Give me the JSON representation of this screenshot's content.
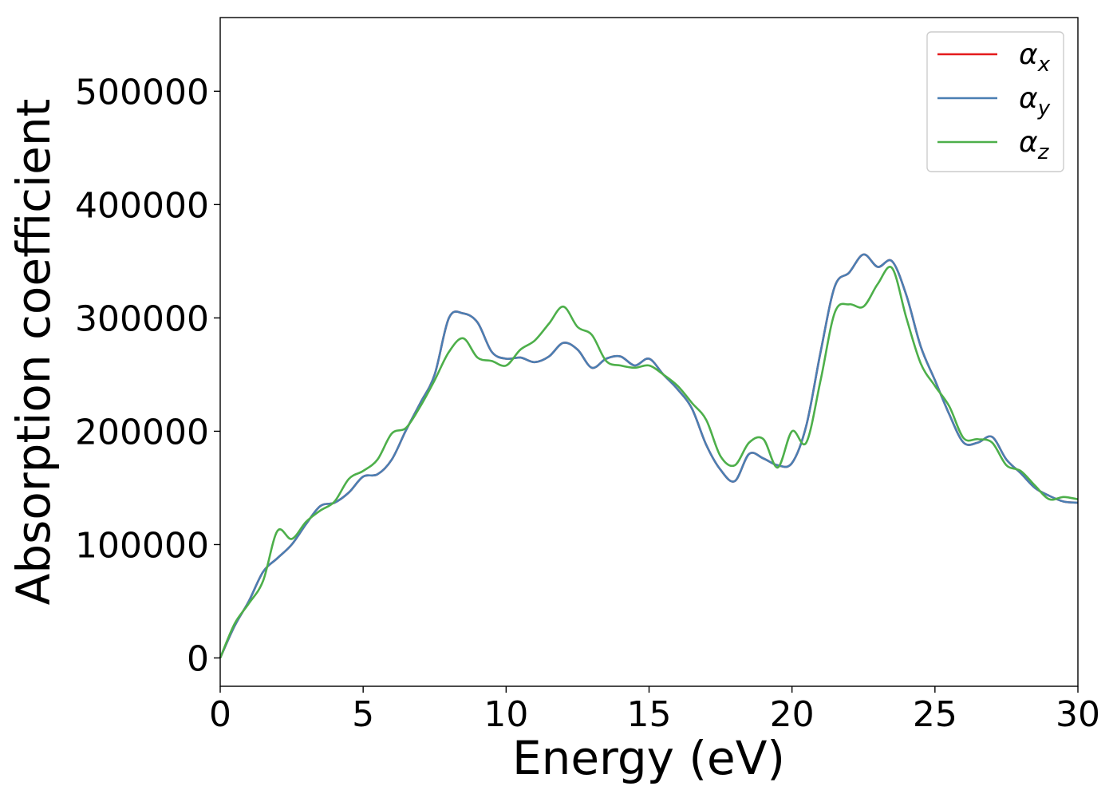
{
  "chart_data": {
    "type": "line",
    "title": "",
    "xlabel": "Energy (eV)",
    "ylabel": "Absorption coefficient",
    "xlim": [
      0,
      30
    ],
    "ylim": [
      -25000,
      565000
    ],
    "xticks": [
      0,
      5,
      10,
      15,
      20,
      25,
      30
    ],
    "yticks": [
      0,
      100000,
      200000,
      300000,
      400000,
      500000
    ],
    "xtick_labels": [
      "0",
      "5",
      "10",
      "15",
      "20",
      "25",
      "30"
    ],
    "ytick_labels": [
      "0",
      "100000",
      "200000",
      "300000",
      "400000",
      "500000"
    ],
    "grid": false,
    "legend_position": "top-right",
    "series": [
      {
        "name": "α_x",
        "legend_base": "α",
        "legend_sub": "x",
        "color": "#e41a1c",
        "x": [
          0,
          0.5,
          1,
          1.5,
          2,
          2.5,
          3,
          3.5,
          4,
          4.5,
          5,
          5.5,
          6,
          6.5,
          7,
          7.5,
          8,
          8.5,
          9,
          9.5,
          10,
          10.5,
          11,
          11.5,
          12,
          12.5,
          13,
          13.5,
          14,
          14.5,
          15,
          15.5,
          16,
          16.5,
          17,
          17.5,
          18,
          18.5,
          19,
          19.5,
          20,
          20.5,
          21,
          21.5,
          22,
          22.5,
          23,
          23.5,
          24,
          24.5,
          25,
          25.5,
          26,
          26.5,
          27,
          27.5,
          28,
          28.5,
          29,
          29.5,
          30
        ],
        "y": [
          0,
          28000,
          50000,
          76000,
          88000,
          100000,
          118000,
          134000,
          137000,
          146000,
          160000,
          162000,
          175000,
          201000,
          225000,
          250000,
          300000,
          304000,
          296000,
          270000,
          264000,
          265000,
          261000,
          266000,
          278000,
          272000,
          256000,
          264000,
          266000,
          258000,
          264000,
          250000,
          237000,
          220000,
          188000,
          166000,
          156000,
          180000,
          176000,
          170000,
          172000,
          205000,
          270000,
          328000,
          340000,
          356000,
          345000,
          350000,
          320000,
          275000,
          245000,
          215000,
          190000,
          190000,
          195000,
          175000,
          163000,
          150000,
          143000,
          138000,
          137000
        ]
      },
      {
        "name": "α_y",
        "legend_base": "α",
        "legend_sub": "y",
        "color": "#4a7fb3",
        "x": [
          0,
          0.5,
          1,
          1.5,
          2,
          2.5,
          3,
          3.5,
          4,
          4.5,
          5,
          5.5,
          6,
          6.5,
          7,
          7.5,
          8,
          8.5,
          9,
          9.5,
          10,
          10.5,
          11,
          11.5,
          12,
          12.5,
          13,
          13.5,
          14,
          14.5,
          15,
          15.5,
          16,
          16.5,
          17,
          17.5,
          18,
          18.5,
          19,
          19.5,
          20,
          20.5,
          21,
          21.5,
          22,
          22.5,
          23,
          23.5,
          24,
          24.5,
          25,
          25.5,
          26,
          26.5,
          27,
          27.5,
          28,
          28.5,
          29,
          29.5,
          30
        ],
        "y": [
          0,
          28000,
          50000,
          76000,
          88000,
          100000,
          118000,
          134000,
          137000,
          146000,
          160000,
          162000,
          175000,
          201000,
          225000,
          250000,
          300000,
          304000,
          296000,
          270000,
          264000,
          265000,
          261000,
          266000,
          278000,
          272000,
          256000,
          264000,
          266000,
          258000,
          264000,
          250000,
          237000,
          220000,
          188000,
          166000,
          156000,
          180000,
          176000,
          170000,
          172000,
          205000,
          270000,
          328000,
          340000,
          356000,
          345000,
          350000,
          320000,
          275000,
          245000,
          215000,
          190000,
          190000,
          195000,
          175000,
          163000,
          150000,
          143000,
          138000,
          137000
        ]
      },
      {
        "name": "α_z",
        "legend_base": "α",
        "legend_sub": "z",
        "color": "#4daf4a",
        "x": [
          0,
          0.5,
          1,
          1.5,
          2,
          2.5,
          3,
          3.5,
          4,
          4.5,
          5,
          5.5,
          6,
          6.5,
          7,
          7.5,
          8,
          8.5,
          9,
          9.5,
          10,
          10.5,
          11,
          11.5,
          12,
          12.5,
          13,
          13.5,
          14,
          14.5,
          15,
          15.5,
          16,
          16.5,
          17,
          17.5,
          18,
          18.5,
          19,
          19.5,
          20,
          20.5,
          21,
          21.5,
          22,
          22.5,
          23,
          23.5,
          24,
          24.5,
          25,
          25.5,
          26,
          26.5,
          27,
          27.5,
          28,
          28.5,
          29,
          29.5,
          30
        ],
        "y": [
          0,
          30000,
          48000,
          68000,
          112000,
          105000,
          120000,
          130000,
          138000,
          158000,
          165000,
          175000,
          198000,
          203000,
          222000,
          245000,
          270000,
          282000,
          265000,
          262000,
          258000,
          272000,
          280000,
          295000,
          310000,
          292000,
          285000,
          262000,
          258000,
          256000,
          258000,
          250000,
          240000,
          225000,
          210000,
          178000,
          170000,
          190000,
          193000,
          168000,
          200000,
          190000,
          245000,
          305000,
          312000,
          310000,
          330000,
          344000,
          300000,
          260000,
          240000,
          222000,
          194000,
          193000,
          190000,
          170000,
          165000,
          152000,
          140000,
          142000,
          140000
        ]
      }
    ]
  }
}
